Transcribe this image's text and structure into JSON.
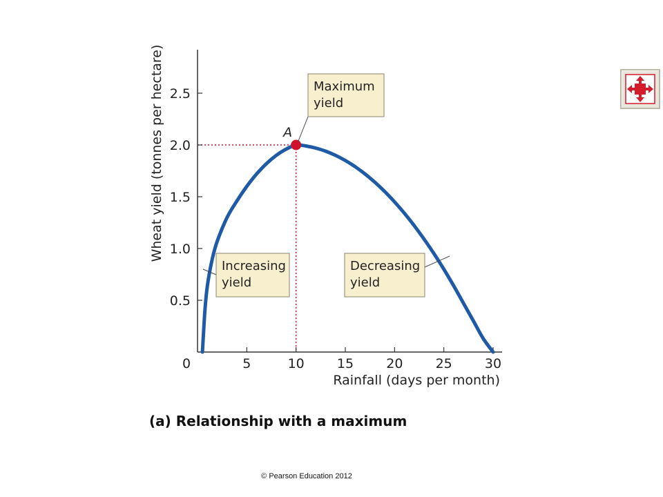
{
  "chart_data": {
    "type": "line",
    "title": "",
    "caption": "(a) Relationship with a maximum",
    "xlabel": "Rainfall (days per month)",
    "ylabel": "Wheat yield (tonnes per hectare)",
    "xlim": [
      0,
      30
    ],
    "ylim": [
      0,
      2.5
    ],
    "x_ticks": [
      0,
      5,
      10,
      15,
      20,
      25,
      30
    ],
    "y_ticks": [
      0.5,
      1.0,
      1.5,
      2.0,
      2.5
    ],
    "x_tick_labels": [
      "0",
      "5",
      "10",
      "15",
      "20",
      "25",
      "30"
    ],
    "y_tick_labels": [
      "0.5",
      "1.0",
      "1.5",
      "2.0",
      "2.5"
    ],
    "grid": false,
    "series": [
      {
        "color": "#1f5aa6",
        "x": [
          0.5,
          0.75,
          1,
          1.5,
          2,
          3,
          4,
          5,
          6,
          7,
          8,
          9,
          10,
          11,
          12,
          13,
          14,
          15,
          16,
          17,
          18,
          19,
          20,
          21,
          22,
          23,
          24,
          25,
          26,
          27,
          28,
          29,
          30
        ],
        "y": [
          0.0,
          0.4,
          0.64,
          0.9,
          1.07,
          1.3,
          1.46,
          1.6,
          1.72,
          1.82,
          1.9,
          1.96,
          2.0,
          1.99,
          1.97,
          1.94,
          1.9,
          1.85,
          1.79,
          1.72,
          1.64,
          1.55,
          1.45,
          1.34,
          1.22,
          1.09,
          0.95,
          0.8,
          0.64,
          0.47,
          0.3,
          0.13,
          0.0
        ]
      }
    ],
    "highlight_point": {
      "label": "A",
      "x": 10,
      "y": 2.0,
      "color": "#d0112b"
    },
    "highlight_tick_labels": {
      "x": "10",
      "y": "2.0",
      "color": "#d0112b"
    },
    "annotations": [
      {
        "id": "maximum",
        "lines": [
          "Maximum",
          "yield"
        ],
        "x": 10,
        "y": 2.0
      },
      {
        "id": "increasing",
        "lines": [
          "Increasing",
          "yield"
        ],
        "x": 0.75,
        "y": 0.95
      },
      {
        "id": "decreasing",
        "lines": [
          "Decreasing",
          "yield"
        ],
        "x": 25.3,
        "y": 0.92
      }
    ],
    "annotation_box_color": "#f8efcf"
  },
  "copyright": "© Pearson Education 2012",
  "expand_icon": "expand-arrows-icon"
}
